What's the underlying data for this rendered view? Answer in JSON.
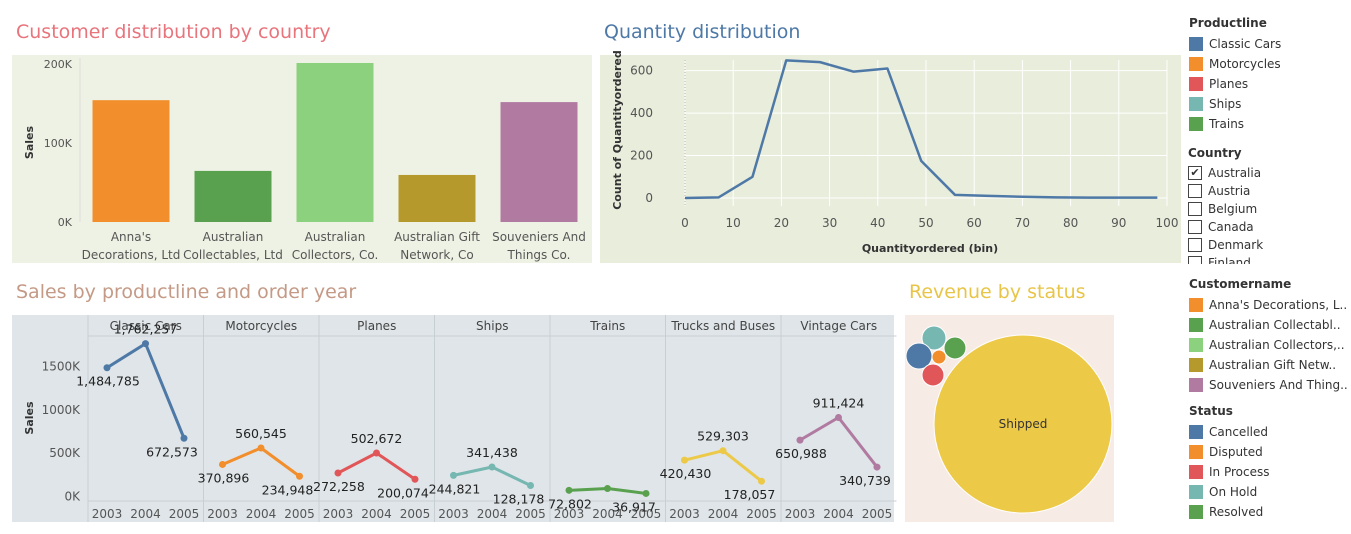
{
  "titles": {
    "customer": "Customer distribution by country",
    "quantity": "Quantity distribution",
    "sales": "Sales by productline and order year",
    "revenue": "Revenue by status"
  },
  "colors": {
    "customer_title": "#e8747c",
    "quantity_title": "#4e79a7",
    "sales_title": "#c49a86",
    "revenue_title": "#e8c547",
    "customer_bg": "#eef2e4",
    "quantity_bg": "#e8eddc",
    "sales_bg": "#dfe5e8",
    "revenue_bg": "#f7ebe6"
  },
  "chart_data": [
    {
      "id": "customer",
      "type": "bar",
      "categories": [
        [
          "Anna's",
          "Decorations, Ltd"
        ],
        [
          "Australian",
          "Collectables, Ltd"
        ],
        [
          "Australian",
          "Collectors, Co."
        ],
        [
          "Australian Gift",
          "Network, Co"
        ],
        [
          "Souveniers And",
          "Things Co."
        ]
      ],
      "values": [
        153996,
        64591,
        200995,
        59469,
        151571
      ],
      "colors": [
        "#f28e2b",
        "#59a14f",
        "#8cd17d",
        "#b6992d",
        "#b07aa1"
      ],
      "ylabel": "Sales",
      "ylim": [
        0,
        200995
      ],
      "yticks": [
        {
          "v": 0,
          "t": "0K"
        },
        {
          "v": 100000,
          "t": "100K"
        },
        {
          "v": 200000,
          "t": "200K"
        }
      ]
    },
    {
      "id": "quantity",
      "type": "line",
      "x": [
        0,
        7,
        14,
        21,
        28,
        35,
        42,
        49,
        56,
        63,
        70,
        77,
        84,
        91,
        98
      ],
      "values": [
        0,
        3,
        100,
        648,
        640,
        595,
        610,
        175,
        15,
        10,
        6,
        3,
        2,
        2,
        2
      ],
      "color": "#4e79a7",
      "xlabel": "Quantityordered (bin)",
      "ylabel": "Count of Quantityordered",
      "xticks": [
        "0",
        "10",
        "20",
        "30",
        "40",
        "50",
        "60",
        "70",
        "80",
        "90",
        "100"
      ],
      "yticks": [
        "0",
        "200",
        "400",
        "600"
      ],
      "xlim": [
        0,
        100
      ],
      "ylim": [
        0,
        650
      ]
    },
    {
      "id": "sales",
      "type": "line",
      "ylabel": "Sales",
      "years": [
        "2003",
        "2004",
        "2005"
      ],
      "yticks": [
        {
          "v": 0,
          "t": "0K"
        },
        {
          "v": 500000,
          "t": "500K"
        },
        {
          "v": 1000000,
          "t": "1000K"
        },
        {
          "v": 1500000,
          "t": "1500K"
        }
      ],
      "ylim": [
        -50000,
        1850000
      ],
      "panels": [
        {
          "name": "Classic Cars",
          "color": "#4e79a7",
          "values": [
            1484785,
            1762257,
            672573
          ],
          "labels": [
            "1,484,785",
            "1,762,257",
            "672,573"
          ]
        },
        {
          "name": "Motorcycles",
          "color": "#f28e2b",
          "values": [
            370896,
            560545,
            234948
          ],
          "labels": [
            "370,896",
            "560,545",
            "234,948"
          ]
        },
        {
          "name": "Planes",
          "color": "#e15759",
          "values": [
            272258,
            502672,
            200074
          ],
          "labels": [
            "272,258",
            "502,672",
            "200,074"
          ]
        },
        {
          "name": "Ships",
          "color": "#76b7b2",
          "values": [
            244821,
            341438,
            128178
          ],
          "labels": [
            "244,821",
            "341,438",
            "128,178"
          ]
        },
        {
          "name": "Trains",
          "color": "#59a14f",
          "values": [
            72802,
            94000,
            36917
          ],
          "labels": [
            "72,802",
            "",
            "36,917"
          ]
        },
        {
          "name": "Trucks and Buses",
          "color": "#edc948",
          "values": [
            420430,
            529303,
            178057
          ],
          "labels": [
            "420,430",
            "529,303",
            "178,057"
          ]
        },
        {
          "name": "Vintage Cars",
          "color": "#b07aa1",
          "values": [
            650988,
            911424,
            340739
          ],
          "labels": [
            "650,988",
            "911,424",
            "340,739"
          ]
        }
      ]
    },
    {
      "id": "revenue",
      "type": "bubble",
      "bubbles": [
        {
          "label": "Shipped",
          "color": "#edc948",
          "r": 89
        },
        {
          "label": "",
          "color": "#76b7b2",
          "r": 12
        },
        {
          "label": "",
          "color": "#59a14f",
          "r": 11
        },
        {
          "label": "",
          "color": "#4e79a7",
          "r": 13
        },
        {
          "label": "",
          "color": "#f28e2b",
          "r": 7
        },
        {
          "label": "",
          "color": "#e15759",
          "r": 11
        }
      ]
    }
  ],
  "legends": {
    "productline": {
      "title": "Productline",
      "items": [
        {
          "label": "Classic Cars",
          "color": "#4e79a7"
        },
        {
          "label": "Motorcycles",
          "color": "#f28e2b"
        },
        {
          "label": "Planes",
          "color": "#e15759"
        },
        {
          "label": "Ships",
          "color": "#76b7b2"
        },
        {
          "label": "Trains",
          "color": "#59a14f"
        }
      ]
    },
    "country": {
      "title": "Country",
      "items": [
        {
          "label": "Australia",
          "checked": true
        },
        {
          "label": "Austria",
          "checked": false
        },
        {
          "label": "Belgium",
          "checked": false
        },
        {
          "label": "Canada",
          "checked": false
        },
        {
          "label": "Denmark",
          "checked": false
        },
        {
          "label": "Finland",
          "checked": false
        }
      ]
    },
    "customername": {
      "title": "Customername",
      "items": [
        {
          "label": "Anna's Decorations, L..",
          "color": "#f28e2b"
        },
        {
          "label": "Australian Collectabl..",
          "color": "#59a14f"
        },
        {
          "label": "Australian Collectors,..",
          "color": "#8cd17d"
        },
        {
          "label": "Australian Gift Netw..",
          "color": "#b6992d"
        },
        {
          "label": "Souveniers And Thing..",
          "color": "#b07aa1"
        }
      ]
    },
    "status": {
      "title": "Status",
      "items": [
        {
          "label": "Cancelled",
          "color": "#4e79a7"
        },
        {
          "label": "Disputed",
          "color": "#f28e2b"
        },
        {
          "label": "In Process",
          "color": "#e15759"
        },
        {
          "label": "On Hold",
          "color": "#76b7b2"
        },
        {
          "label": "Resolved",
          "color": "#59a14f"
        }
      ]
    }
  }
}
